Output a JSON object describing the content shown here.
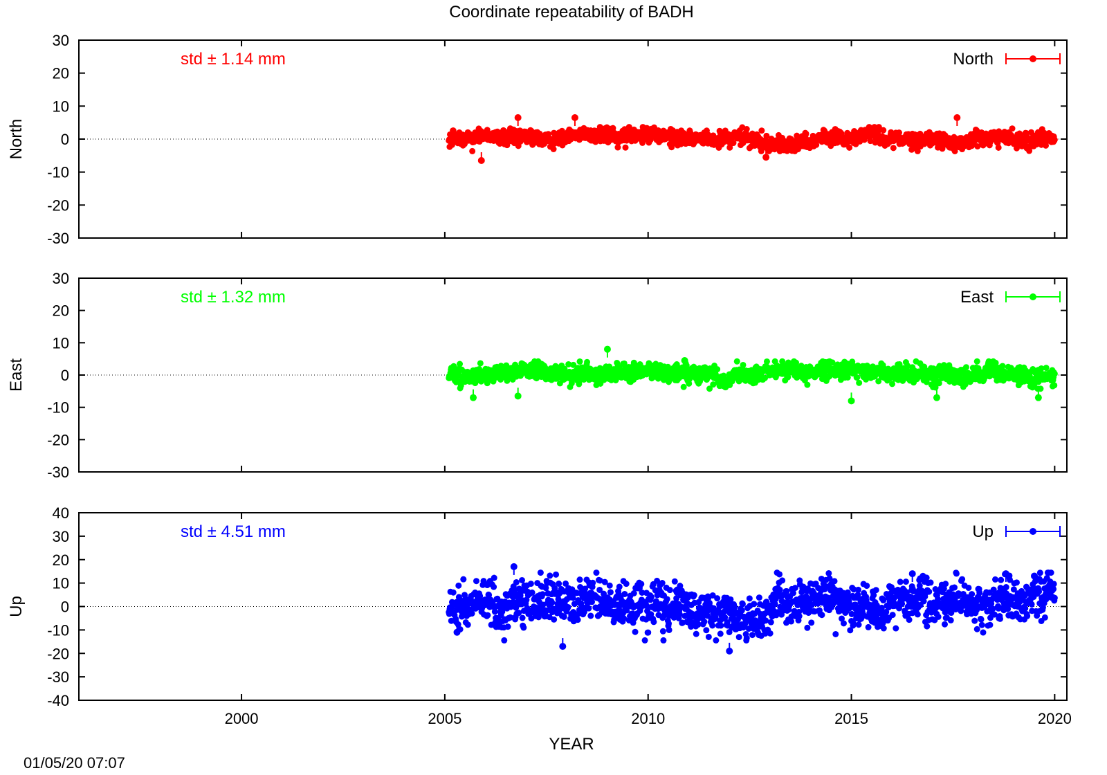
{
  "chart_data": {
    "type": "scatter",
    "title": "Coordinate repeatability of BADH",
    "xlabel": "YEAR",
    "xlim": [
      1996,
      2020.3
    ],
    "xticks": [
      2000,
      2005,
      2010,
      2015,
      2020
    ],
    "timestamp": "01/05/20 07:07",
    "series_time_range": [
      2005.1,
      2020.0
    ],
    "panels": [
      {
        "name": "North",
        "ylabel": "North",
        "ylim": [
          -30,
          30
        ],
        "yticks": [
          -30,
          -20,
          -10,
          0,
          10,
          20,
          30
        ],
        "std_label": "std ± 1.14 mm",
        "std": 1.14,
        "color": "#ff0000",
        "legend": "North",
        "extremes": [
          [
            2005.9,
            -6.5
          ],
          [
            2006.8,
            6.5
          ],
          [
            2008.2,
            6.5
          ],
          [
            2012.9,
            -5.5
          ],
          [
            2017.6,
            6.5
          ]
        ]
      },
      {
        "name": "East",
        "ylabel": "East",
        "ylim": [
          -30,
          30
        ],
        "yticks": [
          -30,
          -20,
          -10,
          0,
          10,
          20,
          30
        ],
        "std_label": "std ± 1.32 mm",
        "std": 1.32,
        "color": "#00ff00",
        "legend": "East",
        "extremes": [
          [
            2005.7,
            -7
          ],
          [
            2006.8,
            -6.5
          ],
          [
            2009.0,
            8
          ],
          [
            2010.9,
            4.5
          ],
          [
            2015.0,
            -8
          ],
          [
            2017.1,
            -7
          ],
          [
            2019.6,
            -7
          ]
        ]
      },
      {
        "name": "Up",
        "ylabel": "Up",
        "ylim": [
          -40,
          40
        ],
        "yticks": [
          -40,
          -30,
          -20,
          -10,
          0,
          10,
          20,
          30,
          40
        ],
        "std_label": "std ± 4.51 mm",
        "std": 4.51,
        "color": "#0000ff",
        "legend": "Up",
        "extremes": [
          [
            2005.3,
            -11
          ],
          [
            2006.7,
            17
          ],
          [
            2007.9,
            -17
          ],
          [
            2012.0,
            -19
          ],
          [
            2016.5,
            14
          ],
          [
            2018.8,
            14
          ],
          [
            2019.5,
            13
          ]
        ]
      }
    ]
  }
}
